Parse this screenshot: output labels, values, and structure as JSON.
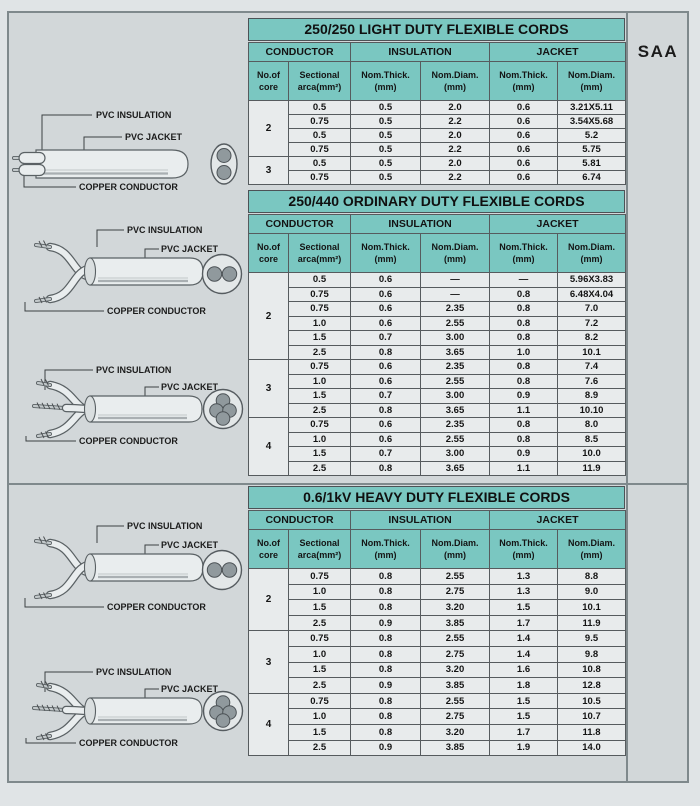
{
  "page": {
    "badge": "SAA"
  },
  "colors": {
    "header_teal": "#7ac7c1",
    "cell_bg": "#e8ebec",
    "panel_bg": "#d2d7d9",
    "border_dark": "#565b5e"
  },
  "diagrams": [
    {
      "type": "flat-2-core",
      "insulation_label": "PVC INSULATION",
      "jacket_label": "PVC JACKET",
      "conductor_label": "COPPER CONDUCTOR"
    },
    {
      "type": "round-2-core",
      "insulation_label": "PVC INSULATION",
      "jacket_label": "PVC JACKET",
      "conductor_label": "COPPER CONDUCTOR"
    },
    {
      "type": "round-4-core",
      "insulation_label": "PVC INSULATION",
      "jacket_label": "PVC JACKET",
      "conductor_label": "COPPER CONDUCTOR"
    },
    {
      "type": "round-2-core",
      "insulation_label": "PVC INSULATION",
      "jacket_label": "PVC JACKET",
      "conductor_label": "COPPER CONDUCTOR"
    },
    {
      "type": "round-4-core",
      "insulation_label": "PVC INSULATION",
      "jacket_label": "PVC JACKET",
      "conductor_label": "COPPER CONDUCTOR"
    }
  ],
  "tables": [
    {
      "title": "250/250 LIGHT DUTY FLEXIBLE CORDS",
      "groups": [
        "CONDUCTOR",
        "INSULATION",
        "JACKET"
      ],
      "columns": [
        "No.of\ncore",
        "Sectional\narca(mm²)",
        "Nom.Thick.\n(mm)",
        "Nom.Diam.\n(mm)",
        "Nom.Thick.\n(mm)",
        "Nom.Diam.\n(mm)"
      ],
      "core_groups": [
        {
          "core": "2",
          "rows": [
            [
              "0.5",
              "0.5",
              "2.0",
              "0.6",
              "3.21X5.11"
            ],
            [
              "0.75",
              "0.5",
              "2.2",
              "0.6",
              "3.54X5.68"
            ],
            [
              "0.5",
              "0.5",
              "2.0",
              "0.6",
              "5.2"
            ],
            [
              "0.75",
              "0.5",
              "2.2",
              "0.6",
              "5.75"
            ]
          ]
        },
        {
          "core": "3",
          "rows": [
            [
              "0.5",
              "0.5",
              "2.0",
              "0.6",
              "5.81"
            ],
            [
              "0.75",
              "0.5",
              "2.2",
              "0.6",
              "6.74"
            ]
          ]
        }
      ]
    },
    {
      "title": "250/440 ORDINARY DUTY  FLEXIBLE CORDS",
      "groups": [
        "CONDUCTOR",
        "INSULATION",
        "JACKET"
      ],
      "columns": [
        "No.of\ncore",
        "Sectional\narca(mm²)",
        "Nom.Thick.\n(mm)",
        "Nom.Diam.\n(mm)",
        "Nom.Thick.\n(mm)",
        "Nom.Diam.\n(mm)"
      ],
      "core_groups": [
        {
          "core": "2",
          "rows": [
            [
              "0.5",
              "0.6",
              "—",
              "—",
              "5.96X3.83"
            ],
            [
              "0.75",
              "0.6",
              "—",
              "0.8",
              "6.48X4.04"
            ],
            [
              "0.75",
              "0.6",
              "2.35",
              "0.8",
              "7.0"
            ],
            [
              "1.0",
              "0.6",
              "2.55",
              "0.8",
              "7.2"
            ],
            [
              "1.5",
              "0.7",
              "3.00",
              "0.8",
              "8.2"
            ],
            [
              "2.5",
              "0.8",
              "3.65",
              "1.0",
              "10.1"
            ]
          ]
        },
        {
          "core": "3",
          "rows": [
            [
              "0.75",
              "0.6",
              "2.35",
              "0.8",
              "7.4"
            ],
            [
              "1.0",
              "0.6",
              "2.55",
              "0.8",
              "7.6"
            ],
            [
              "1.5",
              "0.7",
              "3.00",
              "0.9",
              "8.9"
            ],
            [
              "2.5",
              "0.8",
              "3.65",
              "1.1",
              "10.10"
            ]
          ]
        },
        {
          "core": "4",
          "rows": [
            [
              "0.75",
              "0.6",
              "2.35",
              "0.8",
              "8.0"
            ],
            [
              "1.0",
              "0.6",
              "2.55",
              "0.8",
              "8.5"
            ],
            [
              "1.5",
              "0.7",
              "3.00",
              "0.9",
              "10.0"
            ],
            [
              "2.5",
              "0.8",
              "3.65",
              "1.1",
              "11.9"
            ]
          ]
        }
      ]
    },
    {
      "title": "0.6/1kV HEAVY DUTY FLEXIBLE CORDS",
      "groups": [
        "CONDUCTOR",
        "INSULATION",
        "JACKET"
      ],
      "columns": [
        "No.of\ncore",
        "Sectional\narca(mm²)",
        "Nom.Thick.\n(mm)",
        "Nom.Diam.\n(mm)",
        "Nom.Thick.\n(mm)",
        "Nom.Diam.\n(mm)"
      ],
      "core_groups": [
        {
          "core": "2",
          "rows": [
            [
              "0.75",
              "0.8",
              "2.55",
              "1.3",
              "8.8"
            ],
            [
              "1.0",
              "0.8",
              "2.75",
              "1.3",
              "9.0"
            ],
            [
              "1.5",
              "0.8",
              "3.20",
              "1.5",
              "10.1"
            ],
            [
              "2.5",
              "0.9",
              "3.85",
              "1.7",
              "11.9"
            ]
          ]
        },
        {
          "core": "3",
          "rows": [
            [
              "0.75",
              "0.8",
              "2.55",
              "1.4",
              "9.5"
            ],
            [
              "1.0",
              "0.8",
              "2.75",
              "1.4",
              "9.8"
            ],
            [
              "1.5",
              "0.8",
              "3.20",
              "1.6",
              "10.8"
            ],
            [
              "2.5",
              "0.9",
              "3.85",
              "1.8",
              "12.8"
            ]
          ]
        },
        {
          "core": "4",
          "rows": [
            [
              "0.75",
              "0.8",
              "2.55",
              "1.5",
              "10.5"
            ],
            [
              "1.0",
              "0.8",
              "2.75",
              "1.5",
              "10.7"
            ],
            [
              "1.5",
              "0.8",
              "3.20",
              "1.7",
              "11.8"
            ],
            [
              "2.5",
              "0.9",
              "3.85",
              "1.9",
              "14.0"
            ]
          ]
        }
      ]
    }
  ]
}
